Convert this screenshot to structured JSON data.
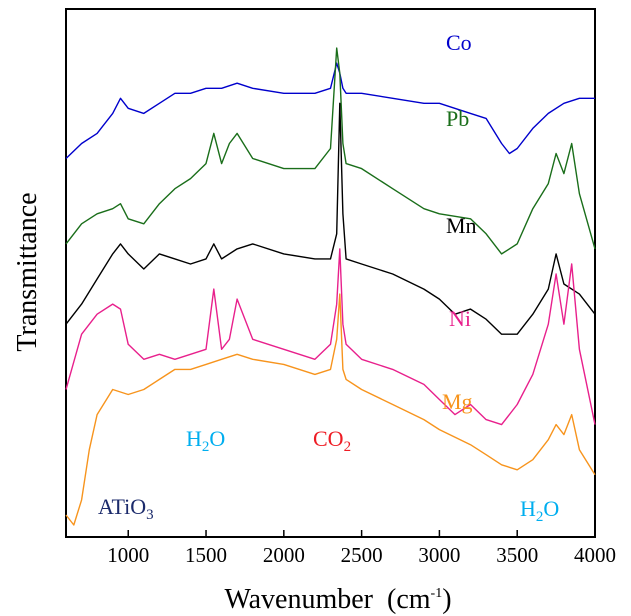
{
  "chart_data": {
    "type": "line",
    "title": "",
    "xlabel": "Wavenumber",
    "xlabel_unit": "(cm",
    "xlabel_unit_exp": "-1",
    "xlabel_unit_close": ")",
    "ylabel": "Transmittance",
    "xlim": [
      600,
      4000
    ],
    "xticks": [
      1000,
      1500,
      2000,
      2500,
      3000,
      3500,
      4000
    ],
    "y_ticks_shown": false,
    "grid": false,
    "legend": "none (series labelled inline)",
    "series": [
      {
        "name": "Co",
        "color": "#0000cc",
        "x": [
          600,
          700,
          800,
          900,
          950,
          1000,
          1100,
          1200,
          1300,
          1400,
          1500,
          1600,
          1700,
          1800,
          2000,
          2200,
          2300,
          2340,
          2360,
          2380,
          2400,
          2500,
          2700,
          2900,
          3000,
          3200,
          3300,
          3400,
          3450,
          3500,
          3600,
          3700,
          3800,
          3900,
          4000
        ],
        "y": [
          0.73,
          0.76,
          0.78,
          0.82,
          0.85,
          0.83,
          0.82,
          0.84,
          0.86,
          0.86,
          0.87,
          0.87,
          0.88,
          0.87,
          0.86,
          0.86,
          0.87,
          0.92,
          0.9,
          0.87,
          0.86,
          0.86,
          0.85,
          0.84,
          0.84,
          0.82,
          0.81,
          0.76,
          0.74,
          0.75,
          0.79,
          0.82,
          0.84,
          0.85,
          0.85
        ]
      },
      {
        "name": "Pb",
        "color": "#1a6e1a",
        "x": [
          600,
          700,
          800,
          900,
          950,
          1000,
          1100,
          1200,
          1300,
          1400,
          1500,
          1550,
          1600,
          1650,
          1700,
          1800,
          2000,
          2200,
          2300,
          2340,
          2360,
          2380,
          2400,
          2500,
          2700,
          2900,
          3000,
          3200,
          3300,
          3400,
          3500,
          3600,
          3700,
          3750,
          3800,
          3850,
          3900,
          4000
        ],
        "y": [
          0.56,
          0.6,
          0.62,
          0.63,
          0.64,
          0.61,
          0.6,
          0.64,
          0.67,
          0.69,
          0.72,
          0.78,
          0.72,
          0.76,
          0.78,
          0.73,
          0.71,
          0.71,
          0.75,
          0.95,
          0.9,
          0.76,
          0.72,
          0.71,
          0.67,
          0.63,
          0.62,
          0.61,
          0.58,
          0.54,
          0.56,
          0.63,
          0.68,
          0.74,
          0.7,
          0.76,
          0.66,
          0.55
        ]
      },
      {
        "name": "Mn",
        "color": "#000000",
        "x": [
          600,
          700,
          800,
          900,
          950,
          1000,
          1100,
          1200,
          1300,
          1400,
          1500,
          1550,
          1600,
          1700,
          1800,
          2000,
          2200,
          2300,
          2340,
          2360,
          2380,
          2400,
          2500,
          2700,
          2900,
          3000,
          3100,
          3200,
          3300,
          3400,
          3500,
          3600,
          3700,
          3750,
          3800,
          3900,
          4000
        ],
        "y": [
          0.4,
          0.44,
          0.49,
          0.54,
          0.56,
          0.54,
          0.51,
          0.54,
          0.53,
          0.52,
          0.53,
          0.56,
          0.53,
          0.55,
          0.56,
          0.54,
          0.53,
          0.53,
          0.58,
          0.84,
          0.62,
          0.53,
          0.52,
          0.5,
          0.47,
          0.45,
          0.42,
          0.43,
          0.41,
          0.38,
          0.38,
          0.42,
          0.47,
          0.54,
          0.48,
          0.46,
          0.42
        ]
      },
      {
        "name": "Ni",
        "color": "#e8208c",
        "x": [
          600,
          700,
          800,
          900,
          950,
          1000,
          1100,
          1200,
          1300,
          1400,
          1500,
          1550,
          1600,
          1650,
          1700,
          1800,
          2000,
          2200,
          2300,
          2340,
          2360,
          2380,
          2400,
          2500,
          2700,
          2900,
          3000,
          3100,
          3200,
          3300,
          3400,
          3500,
          3600,
          3700,
          3750,
          3800,
          3850,
          3900,
          4000
        ],
        "y": [
          0.27,
          0.38,
          0.42,
          0.44,
          0.43,
          0.36,
          0.33,
          0.34,
          0.33,
          0.34,
          0.35,
          0.47,
          0.35,
          0.37,
          0.45,
          0.37,
          0.35,
          0.33,
          0.36,
          0.44,
          0.55,
          0.4,
          0.36,
          0.33,
          0.31,
          0.28,
          0.25,
          0.22,
          0.24,
          0.21,
          0.2,
          0.24,
          0.3,
          0.4,
          0.5,
          0.4,
          0.52,
          0.35,
          0.2
        ]
      },
      {
        "name": "Mg",
        "color": "#f7941d",
        "x": [
          600,
          650,
          700,
          750,
          800,
          900,
          1000,
          1100,
          1200,
          1300,
          1400,
          1500,
          1600,
          1700,
          1800,
          2000,
          2200,
          2300,
          2340,
          2360,
          2380,
          2400,
          2500,
          2700,
          2900,
          3000,
          3200,
          3300,
          3400,
          3500,
          3600,
          3700,
          3750,
          3800,
          3850,
          3900,
          4000
        ],
        "y": [
          0.02,
          0.0,
          0.05,
          0.15,
          0.22,
          0.27,
          0.26,
          0.27,
          0.29,
          0.31,
          0.31,
          0.32,
          0.33,
          0.34,
          0.33,
          0.32,
          0.3,
          0.31,
          0.37,
          0.46,
          0.31,
          0.29,
          0.27,
          0.24,
          0.21,
          0.19,
          0.16,
          0.14,
          0.12,
          0.11,
          0.13,
          0.17,
          0.2,
          0.18,
          0.22,
          0.15,
          0.1
        ]
      }
    ],
    "series_labels": [
      {
        "text": "Co",
        "color": "#0000cc"
      },
      {
        "text": "Pb",
        "color": "#1a6e1a"
      },
      {
        "text": "Mn",
        "color": "#000000"
      },
      {
        "text": "Ni",
        "color": "#e8208c"
      },
      {
        "text": "Mg",
        "color": "#f7941d"
      }
    ],
    "annotations": [
      {
        "id": "h2o-left",
        "base": "H",
        "sub": "2",
        "tail": "O",
        "color": "#00aeef"
      },
      {
        "id": "co2",
        "base": "CO",
        "sub": "2",
        "tail": "",
        "color": "#ee1c24"
      },
      {
        "id": "h2o-right",
        "base": "H",
        "sub": "2",
        "tail": "O",
        "color": "#00aeef"
      },
      {
        "id": "atio3",
        "base": "ATiO",
        "sub": "3",
        "tail": "",
        "color": "#1b2a6b"
      }
    ]
  }
}
